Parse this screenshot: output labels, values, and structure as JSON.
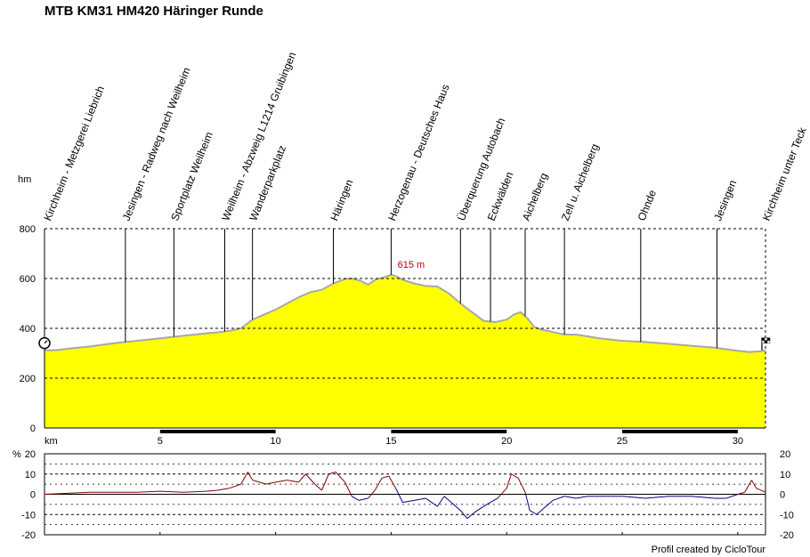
{
  "title": "MTB KM31 HM420 Häringer Runde",
  "credit": "Profil created by CicloTour",
  "colors": {
    "fill": "#ffff00",
    "profile_line": "#a8a8a8",
    "peak_label": "#c00000",
    "slope_up": "#800000",
    "slope_down": "#000080"
  },
  "chart_data": [
    {
      "type": "area",
      "title": "MTB KM31 HM420 Häringer Runde",
      "xlabel": "km",
      "ylabel": "hm",
      "xlim": [
        0,
        31.2
      ],
      "ylim": [
        0,
        800
      ],
      "x_ticks": [
        5,
        10,
        15,
        20,
        25,
        30
      ],
      "y_ticks": [
        0,
        200,
        400,
        600,
        800
      ],
      "grid": true,
      "annotations": [
        {
          "x": 15.2,
          "y": 615,
          "text": "615 m"
        }
      ],
      "waypoints": [
        {
          "km": 0.1,
          "name": "Kirchheim - Metzgerei Liebrich"
        },
        {
          "km": 3.5,
          "name": "Jesingen - Radweg nach Weilheim"
        },
        {
          "km": 5.6,
          "name": "Sportplatz Weilheim"
        },
        {
          "km": 7.8,
          "name": "Weilheim - Abzweig L1214 Gruibingen"
        },
        {
          "km": 9.0,
          "name": "Wanderparkplatz"
        },
        {
          "km": 12.5,
          "name": "Häringen"
        },
        {
          "km": 15.0,
          "name": "Herzogenau - Deutsches Haus"
        },
        {
          "km": 18.0,
          "name": "Überquerung Autobach"
        },
        {
          "km": 19.3,
          "name": "Eckwälden"
        },
        {
          "km": 20.8,
          "name": "Aichelberg"
        },
        {
          "km": 22.5,
          "name": "Zell u. Aichelberg"
        },
        {
          "km": 25.8,
          "name": "Ohnde"
        },
        {
          "km": 29.1,
          "name": "Jesingen"
        },
        {
          "km": 31.2,
          "name": "Kirchheim unter Teck"
        }
      ],
      "x": [
        0,
        0.5,
        1,
        2,
        3,
        4,
        5,
        6,
        7,
        7.5,
        8,
        8.5,
        9,
        9.5,
        10,
        10.5,
        11,
        11.5,
        12,
        12.5,
        13,
        13.3,
        13.7,
        14,
        14.3,
        14.7,
        15,
        15.2,
        15.5,
        16,
        16.5,
        17,
        17.5,
        18,
        18.5,
        19,
        19.5,
        20,
        20.3,
        20.6,
        20.9,
        21.2,
        21.5,
        22,
        22.5,
        23,
        23.5,
        24,
        25,
        26,
        27,
        28,
        29,
        30,
        30.5,
        31,
        31.2
      ],
      "y": [
        312,
        312,
        318,
        328,
        340,
        350,
        360,
        370,
        380,
        384,
        390,
        400,
        435,
        455,
        475,
        500,
        525,
        545,
        555,
        580,
        598,
        600,
        590,
        575,
        595,
        605,
        615,
        610,
        595,
        580,
        570,
        568,
        540,
        500,
        465,
        430,
        425,
        435,
        455,
        465,
        440,
        405,
        395,
        385,
        375,
        375,
        368,
        360,
        350,
        345,
        338,
        330,
        322,
        310,
        305,
        308,
        312
      ]
    },
    {
      "type": "line",
      "title": "",
      "ylabel": "%",
      "xlim": [
        0,
        31.2
      ],
      "ylim": [
        -20,
        20
      ],
      "y_ticks": [
        -20,
        -10,
        0,
        10,
        20
      ],
      "grid": true,
      "x": [
        0,
        1,
        2,
        3,
        4,
        5,
        6,
        7,
        7.5,
        8,
        8.5,
        8.8,
        9,
        9.3,
        9.6,
        10,
        10.5,
        11,
        11.3,
        11.7,
        12,
        12.3,
        12.6,
        13,
        13.3,
        13.6,
        14,
        14.3,
        14.6,
        14.9,
        15.2,
        15.5,
        16,
        16.5,
        17,
        17.3,
        17.6,
        18,
        18.3,
        18.6,
        19,
        19.3,
        19.6,
        20,
        20.2,
        20.5,
        20.8,
        21,
        21.3,
        21.6,
        22,
        22.5,
        23,
        23.5,
        24,
        25,
        26,
        27,
        28,
        29,
        29.5,
        30,
        30.3,
        30.6,
        30.8,
        31.2
      ],
      "values": [
        0,
        0.5,
        1,
        1,
        1,
        1.5,
        1,
        1.5,
        2,
        3,
        5,
        11,
        7,
        6,
        5,
        6,
        7,
        6,
        10,
        5,
        2,
        10,
        11,
        6,
        -1,
        -3,
        -2,
        2,
        8,
        9,
        3,
        -4,
        -3,
        -2,
        -6,
        -1,
        -4,
        -8,
        -12,
        -9,
        -6,
        -4,
        -2,
        3,
        10,
        8,
        1,
        -8,
        -10,
        -7,
        -3,
        -1,
        -2,
        -1,
        -1,
        -1,
        -2,
        -1,
        -1,
        -2,
        -2,
        0,
        1,
        7,
        3,
        1
      ]
    }
  ]
}
